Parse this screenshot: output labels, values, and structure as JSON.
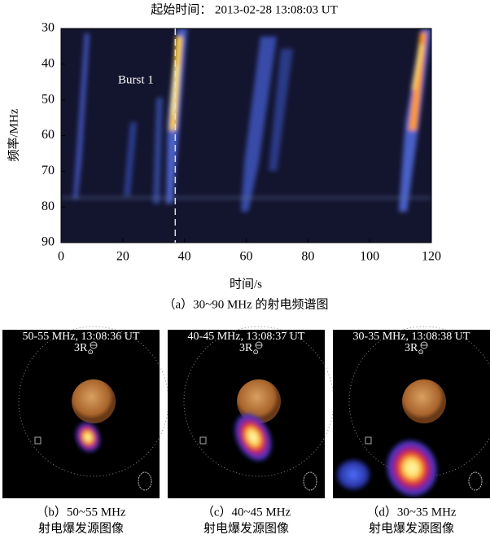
{
  "chart_data": {
    "type": "spectrogram",
    "title": "起始时间： 2013-02-28 13:08:03 UT",
    "xlabel": "时间/s",
    "ylabel": "频率/MHz",
    "caption": "（a）30~90 MHz 的射电频谱图",
    "annotation": "Burst 1",
    "xlim": [
      0,
      120
    ],
    "ylim": [
      30,
      90
    ],
    "y_inverted": true,
    "xticks": [
      0,
      20,
      40,
      60,
      80,
      100,
      120
    ],
    "yticks": [
      30,
      40,
      50,
      60,
      70,
      80,
      90
    ],
    "marker_x": 37
  },
  "panels": [
    {
      "title": "50-55 MHz, 13:08:36 UT",
      "radius_label": "3R",
      "radius_symbol": "⊙",
      "caption": [
        "（b）50~55 MHz",
        "射电爆发源图像"
      ]
    },
    {
      "title": "40-45 MHz, 13:08:37 UT",
      "radius_label": "3R",
      "radius_symbol": "⊙",
      "caption": [
        "（c）40~45 MHz",
        "射电爆发源图像"
      ]
    },
    {
      "title": "30-35 MHz, 13:08:38 UT",
      "radius_label": "3R",
      "radius_symbol": "⊙",
      "caption": [
        "（d）30~35 MHz",
        "射电爆发源图像"
      ]
    }
  ]
}
